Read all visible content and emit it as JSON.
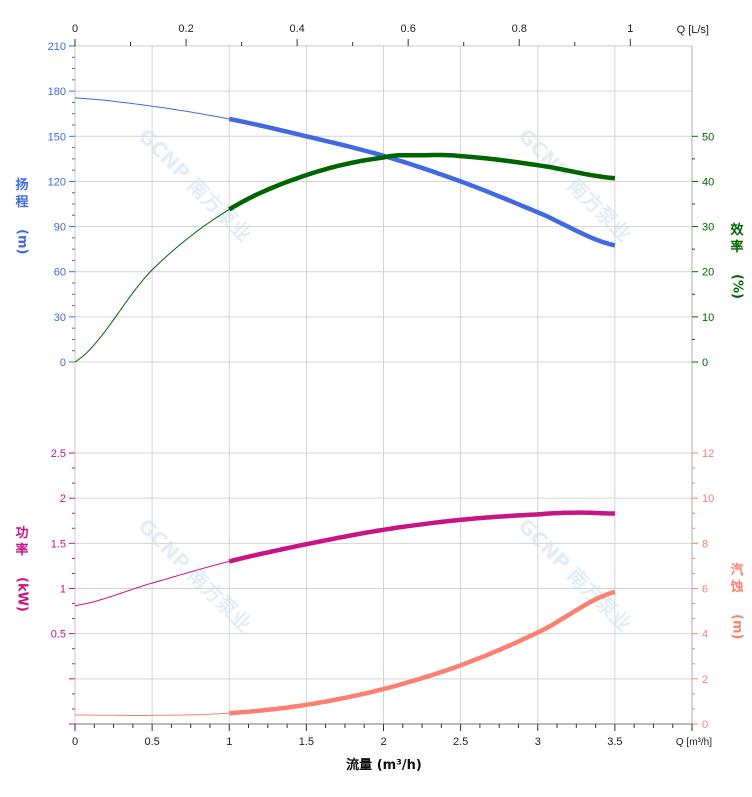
{
  "chart_data": {
    "type": "line",
    "title": "",
    "watermark": "GCNP 南方泵业",
    "grid": true,
    "x": {
      "label": "流量 (m³/h)",
      "unit_label": "Q [m³/h]",
      "range": [
        0,
        4
      ],
      "ticks": [
        "0",
        "0.5",
        "1",
        "1.5",
        "2",
        "2.5",
        "3",
        "3.5"
      ]
    },
    "x_top": {
      "unit_label": "Q [L/s]",
      "range": [
        0,
        1.111
      ],
      "ticks": [
        "0",
        "0.2",
        "0.4",
        "0.6",
        "0.8",
        "1"
      ]
    },
    "panels": [
      {
        "left_axis": {
          "label_chars": [
            "扬",
            "程"
          ],
          "unit": "(m)",
          "range": [
            0,
            210
          ],
          "ticks": [
            "0",
            "30",
            "60",
            "90",
            "120",
            "150",
            "180",
            "210"
          ],
          "color": "#4169E1"
        },
        "right_axis": {
          "label_chars": [
            "效",
            "率"
          ],
          "unit": "(%)",
          "range": [
            0,
            70
          ],
          "ticks": [
            "0",
            "10",
            "20",
            "30",
            "40",
            "50"
          ],
          "color": "#006400"
        }
      },
      {
        "left_axis": {
          "label_chars": [
            "功",
            "率"
          ],
          "unit": "(kW)",
          "range": [
            -0.5,
            2.5
          ],
          "ticks": [
            "0.5",
            "1",
            "1.5",
            "2",
            "2.5"
          ],
          "color": "#C71585"
        },
        "right_axis": {
          "label_chars": [
            "汽",
            "蚀"
          ],
          "unit": "(m)",
          "range": [
            0,
            12
          ],
          "ticks": [
            "0",
            "2",
            "4",
            "6",
            "8",
            "10",
            "12"
          ],
          "color": "#FA8072"
        }
      }
    ],
    "series": [
      {
        "id": "head",
        "panel": 0,
        "axis": "left",
        "color": "#4169E1",
        "operating_range": [
          1,
          3.5
        ],
        "x": [
          0,
          0.5,
          1,
          1.5,
          2,
          2.5,
          3,
          3.5
        ],
        "y": [
          175.5,
          170,
          161.5,
          150,
          137,
          120,
          99.5,
          77.5
        ]
      },
      {
        "id": "efficiency",
        "panel": 0,
        "axis": "right",
        "color": "#006400",
        "operating_range": [
          1,
          3.5
        ],
        "x": [
          0,
          0.5,
          1,
          1.5,
          2,
          2.25,
          2.5,
          3,
          3.5
        ],
        "y": [
          0,
          20.4,
          33.8,
          41.4,
          45.3,
          45.8,
          45.6,
          43.6,
          40.7
        ]
      },
      {
        "id": "power",
        "panel": 1,
        "axis": "left",
        "color": "#C71585",
        "operating_range": [
          1,
          3.5
        ],
        "x": [
          0,
          0.5,
          1,
          1.5,
          2,
          2.5,
          3,
          3.25,
          3.5
        ],
        "y": [
          0.81,
          1.06,
          1.3,
          1.49,
          1.65,
          1.76,
          1.82,
          1.84,
          1.83
        ]
      },
      {
        "id": "npsh",
        "panel": 1,
        "axis": "right",
        "color": "#FA8072",
        "operating_range": [
          1,
          3.5
        ],
        "x": [
          0,
          0.5,
          1,
          1.5,
          2,
          2.5,
          3,
          3.5
        ],
        "y": [
          0.4,
          0.38,
          0.48,
          0.85,
          1.55,
          2.6,
          4.05,
          5.85
        ]
      }
    ]
  }
}
